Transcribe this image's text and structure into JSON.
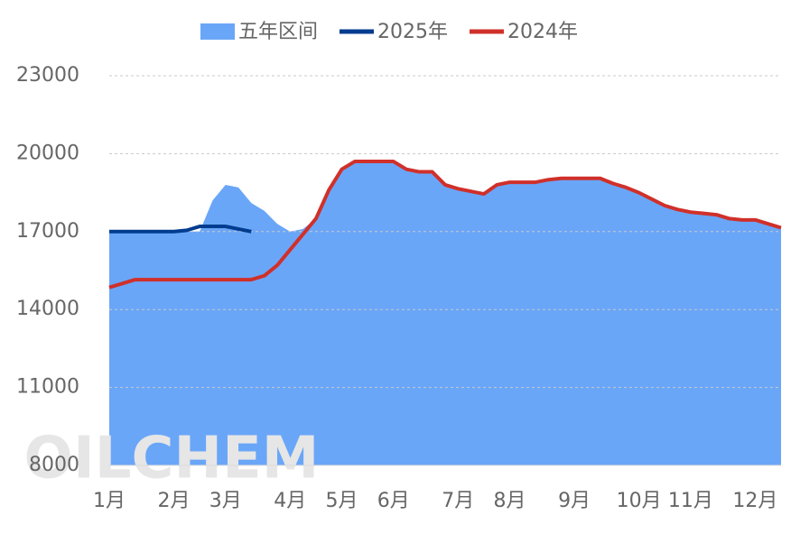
{
  "chart_data": {
    "type": "line",
    "categories": [
      "1月",
      null,
      null,
      null,
      null,
      "2月",
      null,
      null,
      null,
      "3月",
      null,
      null,
      null,
      null,
      "4月",
      null,
      null,
      null,
      "5月",
      null,
      null,
      null,
      "6月",
      null,
      null,
      null,
      null,
      "7月",
      null,
      null,
      null,
      "8月",
      null,
      null,
      null,
      null,
      "9月",
      null,
      null,
      null,
      null,
      "10月",
      null,
      null,
      null,
      "11月",
      null,
      null,
      null,
      null,
      "12月",
      null,
      null
    ],
    "series": [
      {
        "name": "五年区间",
        "kind": "area",
        "color": "#6aa6f8",
        "values": [
          17000,
          17000,
          17000,
          17000,
          17000,
          17000,
          17000,
          17000,
          18200,
          18800,
          18700,
          18100,
          17800,
          17300,
          17000,
          17100,
          17500,
          18600,
          19400,
          19700,
          19700,
          19700,
          19700,
          19400,
          19300,
          19300,
          18800,
          18650,
          18550,
          18450,
          18800,
          18900,
          18900,
          18900,
          19000,
          19050,
          19050,
          19050,
          19050,
          18850,
          18700,
          18500,
          18250,
          18000,
          17850,
          17750,
          17700,
          17650,
          17500,
          17450,
          17450,
          17300,
          17150
        ]
      },
      {
        "name": "2025年",
        "kind": "line",
        "color": "#003c8f",
        "values": [
          17000,
          17000,
          17000,
          17000,
          17000,
          17000,
          17050,
          17200,
          17200,
          17200,
          17100,
          17000,
          null,
          null,
          null,
          null,
          null,
          null,
          null,
          null,
          null,
          null,
          null,
          null,
          null,
          null,
          null,
          null,
          null,
          null,
          null,
          null,
          null,
          null,
          null,
          null,
          null,
          null,
          null,
          null,
          null,
          null,
          null,
          null,
          null,
          null,
          null,
          null,
          null,
          null,
          null,
          null,
          null
        ]
      },
      {
        "name": "2024年",
        "kind": "line",
        "color": "#d0302a",
        "values": [
          14850,
          15000,
          15150,
          15150,
          15150,
          15150,
          15150,
          15150,
          15150,
          15150,
          15150,
          15150,
          15300,
          15700,
          16300,
          16900,
          17500,
          18600,
          19400,
          19700,
          19700,
          19700,
          19700,
          19400,
          19300,
          19300,
          18800,
          18650,
          18550,
          18450,
          18800,
          18900,
          18900,
          18900,
          19000,
          19050,
          19050,
          19050,
          19050,
          18850,
          18700,
          18500,
          18250,
          18000,
          17850,
          17750,
          17700,
          17650,
          17500,
          17450,
          17450,
          17300,
          17150
        ]
      }
    ],
    "ylim": [
      8000,
      23000
    ],
    "yticks": [
      8000,
      11000,
      14000,
      17000,
      20000,
      23000
    ],
    "grid": true,
    "legend": "top",
    "watermark": "OILCHEM"
  }
}
